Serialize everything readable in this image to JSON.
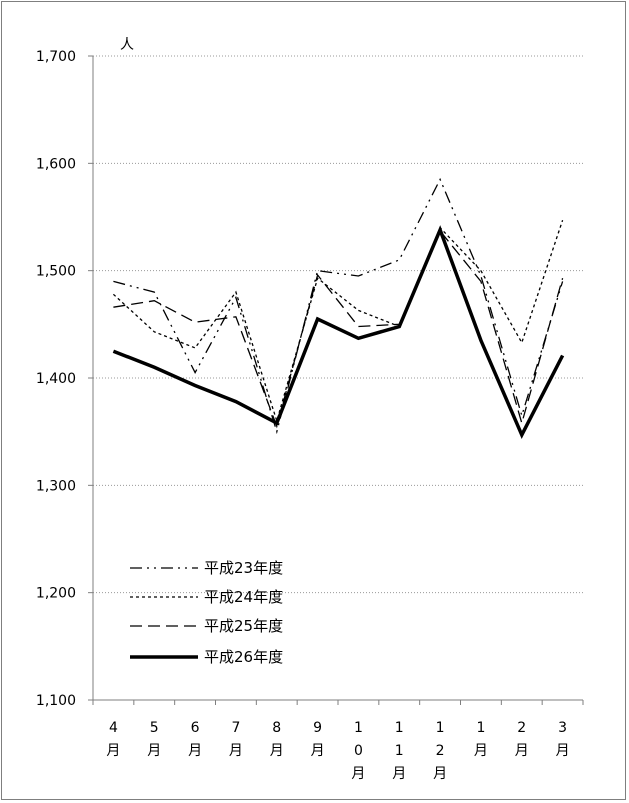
{
  "chart_data": {
    "type": "line",
    "ylabel": "人",
    "ylim": [
      1100,
      1700
    ],
    "yticks": [
      1100,
      1200,
      1300,
      1400,
      1500,
      1600,
      1700
    ],
    "ytick_labels": [
      "1,100",
      "1,200",
      "1,300",
      "1,400",
      "1,500",
      "1,600",
      "1,700"
    ],
    "grid": true,
    "legend_position": "bottom-left",
    "categories": [
      "4月",
      "5月",
      "6月",
      "7月",
      "8月",
      "9月",
      "10月",
      "11月",
      "12月",
      "1月",
      "2月",
      "3月"
    ],
    "category_label_lines": [
      [
        "4",
        "月"
      ],
      [
        "5",
        "月"
      ],
      [
        "6",
        "月"
      ],
      [
        "7",
        "月"
      ],
      [
        "8",
        "月"
      ],
      [
        "9",
        "月"
      ],
      [
        "1",
        "0",
        "月"
      ],
      [
        "1",
        "1",
        "月"
      ],
      [
        "1",
        "2",
        "月"
      ],
      [
        "1",
        "月"
      ],
      [
        "2",
        "月"
      ],
      [
        "3",
        "月"
      ]
    ],
    "series": [
      {
        "name": "平成23年度",
        "values": [
          1490,
          1480,
          1405,
          1475,
          1350,
          1500,
          1495,
          1510,
          1585,
          1495,
          1365,
          1490
        ],
        "dash": "dashdot",
        "width": 1.3
      },
      {
        "name": "平成24年度",
        "values": [
          1478,
          1443,
          1428,
          1480,
          1360,
          1493,
          1463,
          1448,
          1540,
          1500,
          1433,
          1547
        ],
        "dash": "dotted",
        "width": 1.3
      },
      {
        "name": "平成25年度",
        "values": [
          1466,
          1472,
          1452,
          1457,
          1355,
          1496,
          1448,
          1450,
          1537,
          1490,
          1358,
          1493
        ],
        "dash": "dashed",
        "width": 1.3
      },
      {
        "name": "平成26年度",
        "values": [
          1425,
          1410,
          1393,
          1378,
          1358,
          1455,
          1437,
          1448,
          1538,
          1435,
          1347,
          1421
        ],
        "dash": "solid",
        "width": 3.5
      }
    ]
  }
}
